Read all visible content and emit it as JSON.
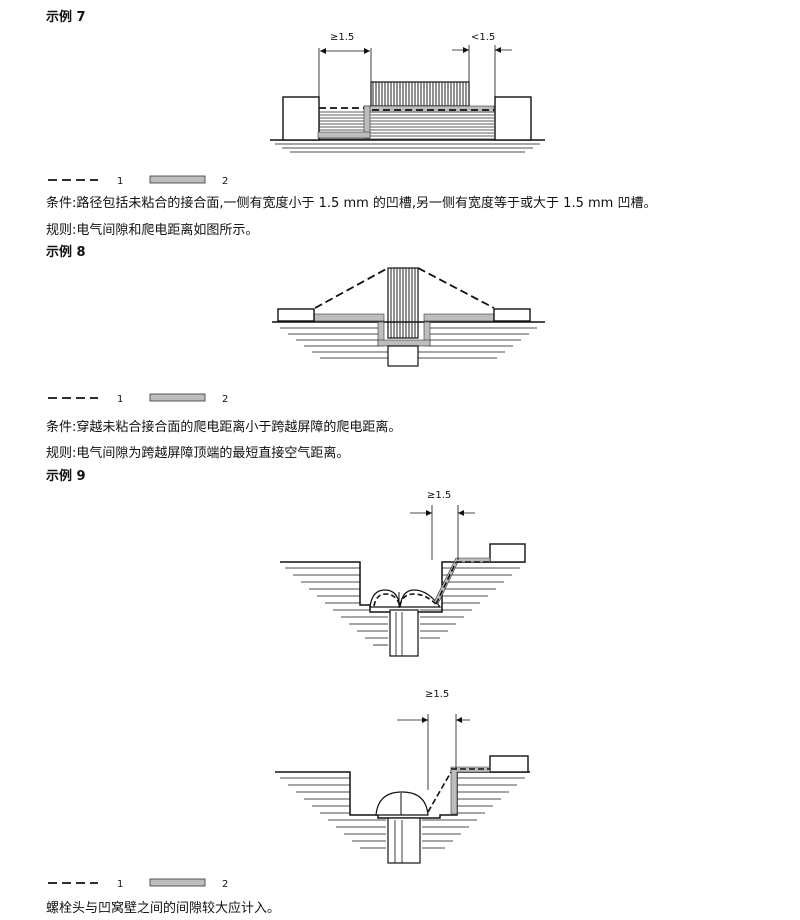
{
  "ex7": {
    "heading": "示例 7",
    "dim_left": "≥1.5",
    "dim_right": "<1.5",
    "legend1": "1",
    "legend2": "2",
    "cond": "条件:路径包括未粘合的接合面,一侧有宽度小于 1.5 mm 的凹槽,另一侧有宽度等于或大于 1.5 mm 凹槽。",
    "rule": "规则:电气间隙和爬电距离如图所示。"
  },
  "ex8": {
    "heading": "示例 8",
    "legend1": "1",
    "legend2": "2",
    "cond": "条件:穿越未粘合接合面的爬电距离小于跨越屏障的爬电距离。",
    "rule": "规则:电气间隙为跨越屏障顶端的最短直接空气距离。"
  },
  "ex9": {
    "heading": "示例 9",
    "dim_a": "≥1.5",
    "dim_b": "≥1.5",
    "legend1": "1",
    "legend2": "2",
    "note": "螺栓头与凹窝壁之间的间隙较大应计入。"
  }
}
